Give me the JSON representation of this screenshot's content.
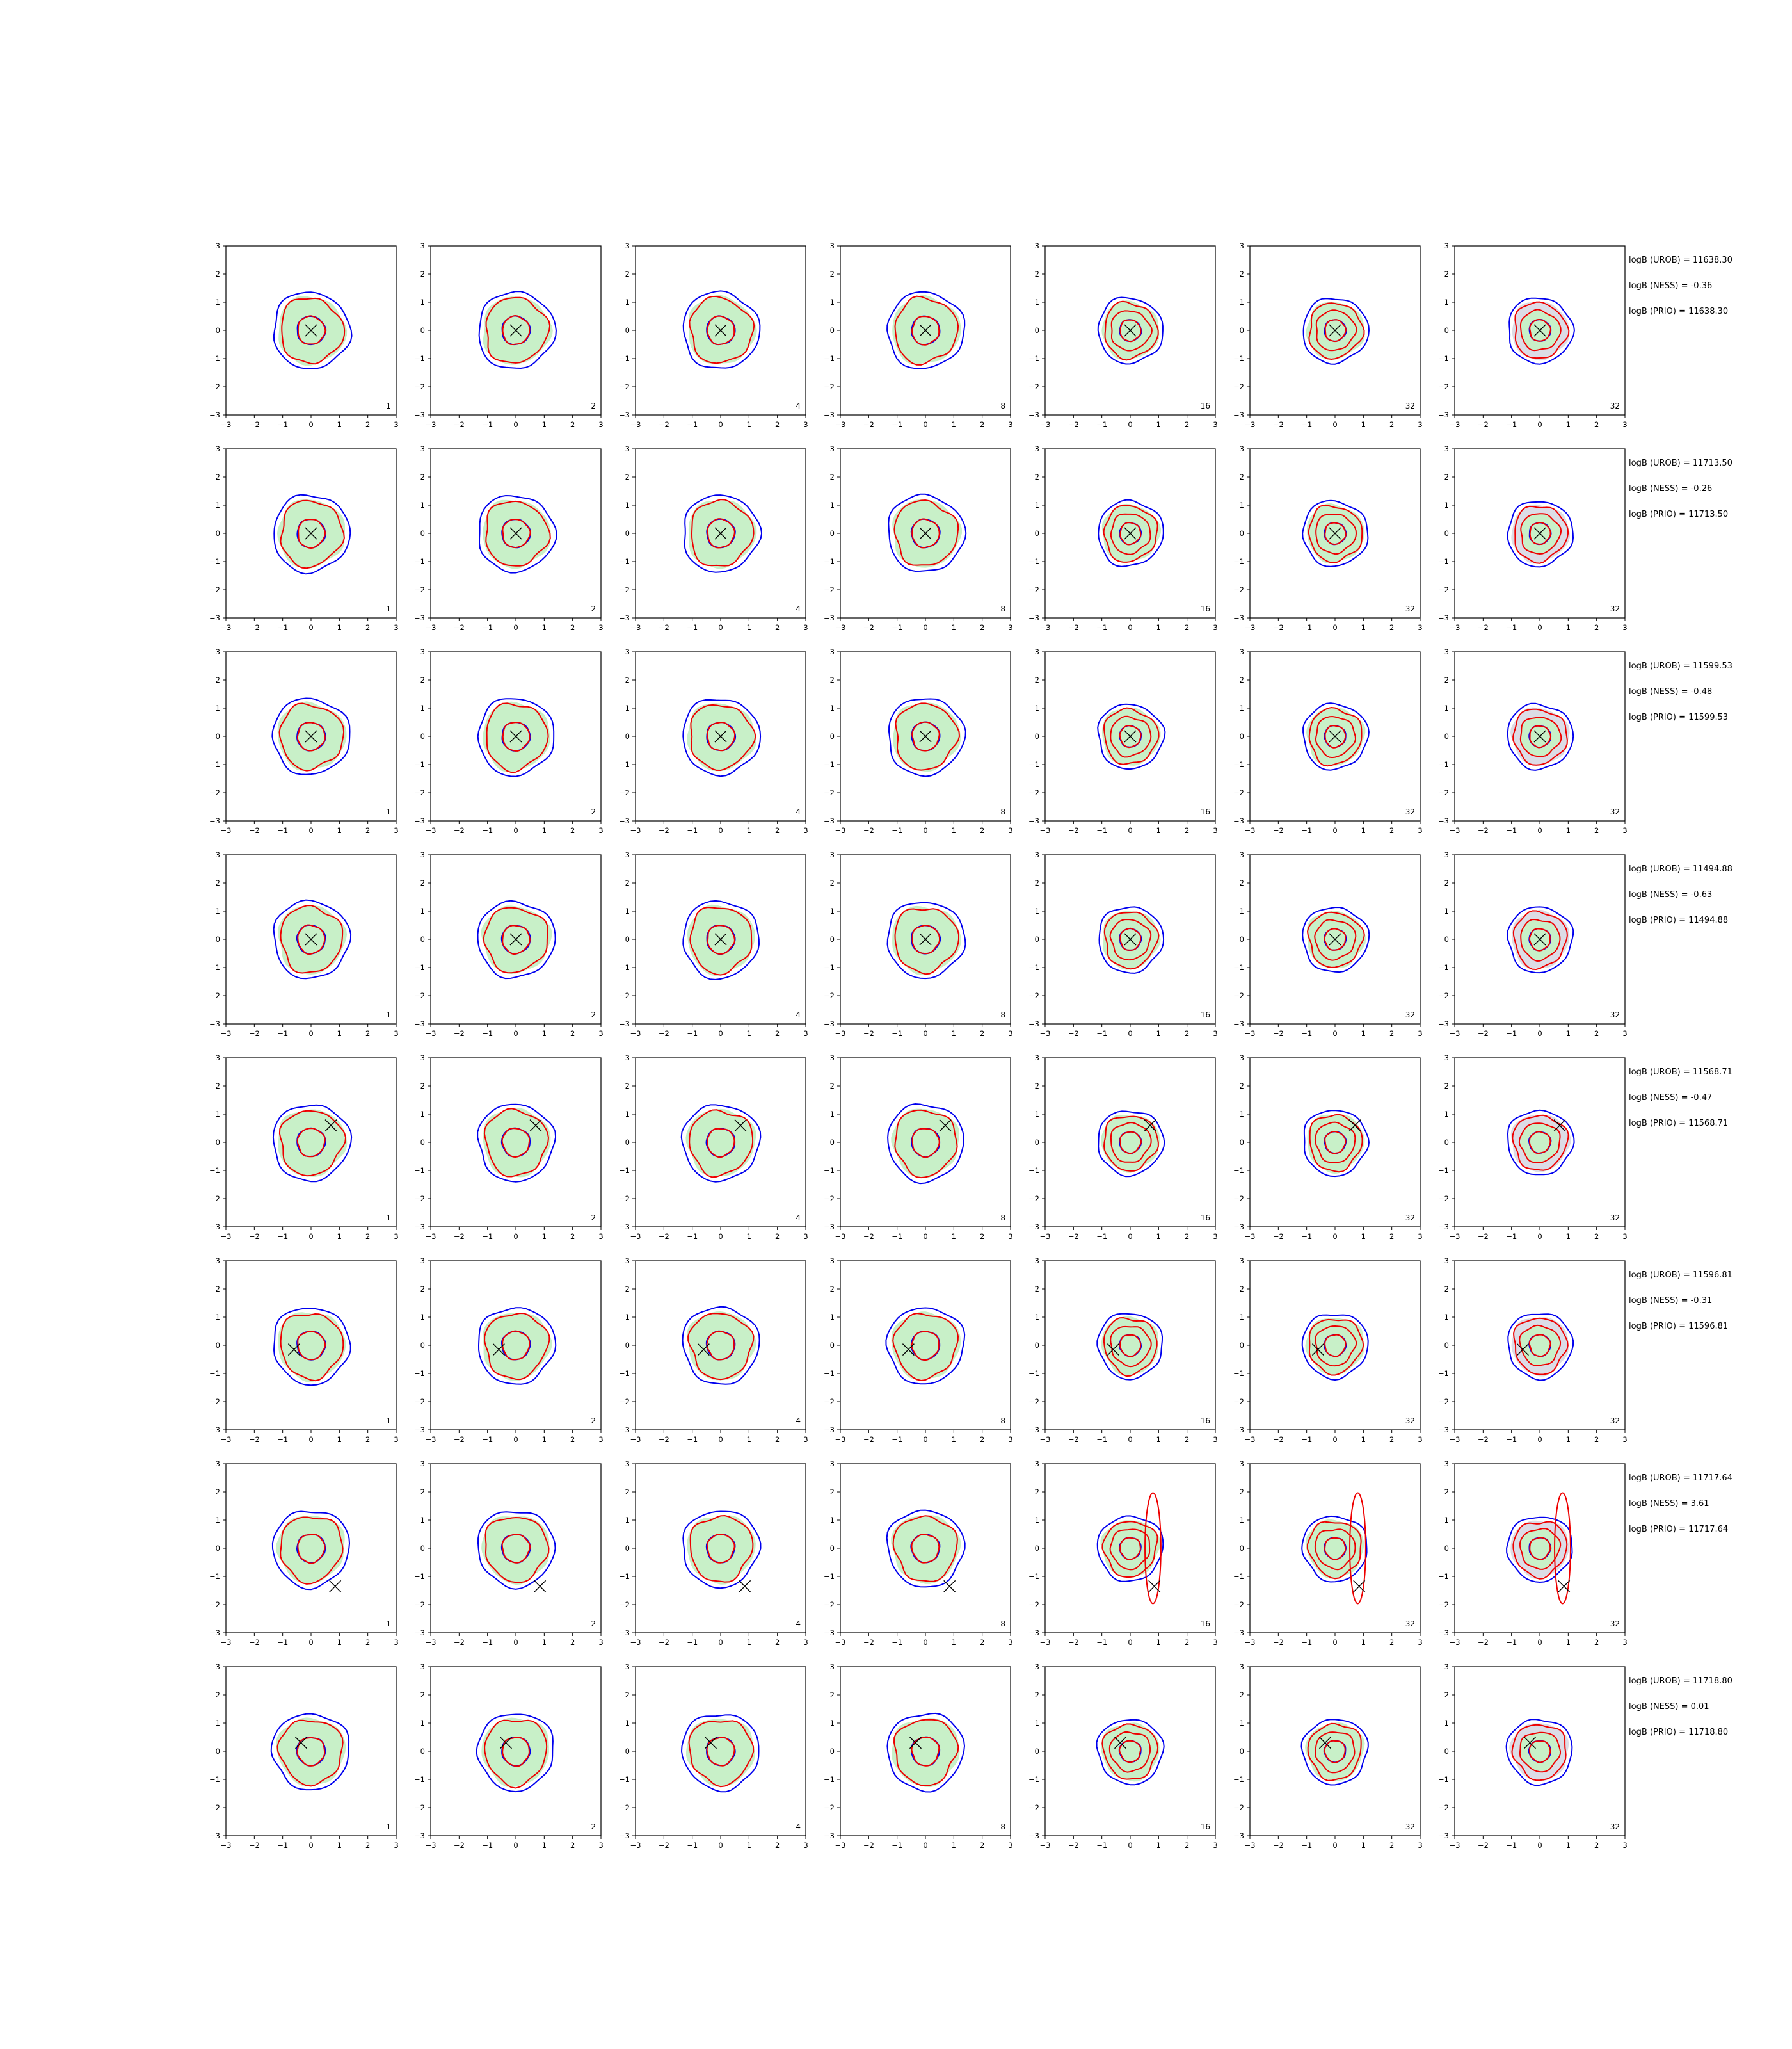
{
  "chart_data": {
    "type": "contour-grid",
    "x_ticks": [
      "−3",
      "−2",
      "−1",
      "0",
      "1",
      "2",
      "3"
    ],
    "y_ticks": [
      "3",
      "2",
      "1",
      "0",
      "−1",
      "−2",
      "−3"
    ],
    "xlim": [
      -3,
      3
    ],
    "ylim": [
      -3,
      3
    ],
    "series_colors": {
      "blue": "#0000ee",
      "red": "#ee0000",
      "fill": "#c8f0c8",
      "gray_fill": "#dcdce6"
    },
    "columns": [
      {
        "label": "1"
      },
      {
        "label": "2"
      },
      {
        "label": "4"
      },
      {
        "label": "8"
      },
      {
        "label": "16"
      },
      {
        "label": "32"
      },
      {
        "label": "32"
      }
    ],
    "rows": [
      {
        "marker": [
          0.0,
          0.0
        ],
        "annotations": [
          "logB (UROB) = 11638.30",
          "logB (NESS) = -0.36",
          "logB (PRIO) = 11638.30"
        ]
      },
      {
        "marker": [
          0.0,
          0.0
        ],
        "annotations": [
          "logB (UROB) = 11713.50",
          "logB (NESS) = -0.26",
          "logB (PRIO) = 11713.50"
        ]
      },
      {
        "marker": [
          0.0,
          0.0
        ],
        "annotations": [
          "logB (UROB) = 11599.53",
          "logB (NESS) = -0.48",
          "logB (PRIO) = 11599.53"
        ]
      },
      {
        "marker": [
          0.0,
          0.0
        ],
        "annotations": [
          "logB (UROB) = 11494.88",
          "logB (NESS) = -0.63",
          "logB (PRIO) = 11494.88"
        ]
      },
      {
        "marker": [
          0.7,
          0.6
        ],
        "annotations": [
          "logB (UROB) = 11568.71",
          "logB (NESS) = -0.47",
          "logB (PRIO) = 11568.71"
        ]
      },
      {
        "marker": [
          -0.6,
          -0.15
        ],
        "annotations": [
          "logB (UROB) = 11596.81",
          "logB (NESS) = -0.31",
          "logB (PRIO) = 11596.81"
        ]
      },
      {
        "marker": [
          0.85,
          -1.35
        ],
        "annotations": [
          "logB (UROB) = 11717.64",
          "logB (NESS) = 3.61",
          "logB (PRIO) = 11717.64"
        ]
      },
      {
        "marker": [
          -0.35,
          0.3
        ],
        "annotations": [
          "logB (UROB) = 11718.80",
          "logB (NESS) = 0.01",
          "logB (PRIO) = 11718.80"
        ]
      }
    ]
  }
}
